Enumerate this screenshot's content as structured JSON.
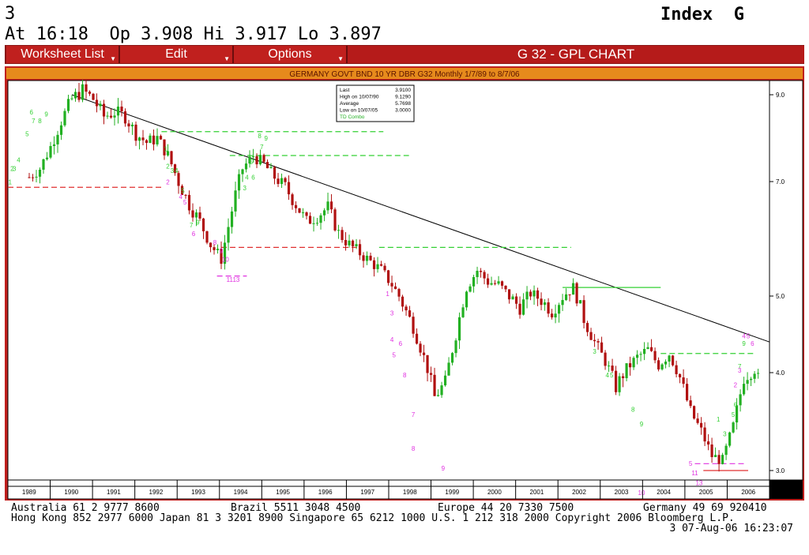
{
  "header": {
    "page_number": "3",
    "quote_line": "At 16:18  Op 3.908 Hi 3.917 Lo 3.897",
    "index_label": "Index  G"
  },
  "menu": {
    "items": [
      {
        "label": "Worksheet List"
      },
      {
        "label": "Edit"
      },
      {
        "label": "Options"
      }
    ],
    "screen_title": "G 32 - GPL CHART"
  },
  "chart_data": {
    "type": "candlestick",
    "title": "GERMANY GOVT BND 10 YR DBR G32 Monthly 1/7/89 to 8/7/06",
    "x_range": [
      1989.0,
      2006.85
    ],
    "y_range": [
      2.85,
      9.3
    ],
    "y_ticks": [
      {
        "value": 9.0,
        "label": "9.0"
      },
      {
        "value": 7.0,
        "label": "7.0"
      },
      {
        "value": 5.0,
        "label": "5.0"
      },
      {
        "value": 4.0,
        "label": "4.0"
      },
      {
        "value": 3.0,
        "label": "3.0"
      }
    ],
    "x_tick_labels": [
      "1989",
      "1990",
      "1991",
      "1992",
      "1993",
      "1994",
      "1995",
      "1996",
      "1997",
      "1998",
      "1999",
      "2000",
      "2001",
      "2002",
      "2003",
      "2004",
      "2005",
      "2006"
    ],
    "stats_box": [
      {
        "label": "Last",
        "value": "3.9100"
      },
      {
        "label": "High on  10/07/90",
        "value": "9.1290"
      },
      {
        "label": "Average",
        "value": "5.7698"
      },
      {
        "label": "Low on  10/07/05",
        "value": "3.0000"
      },
      {
        "label": "TD Combo",
        "value": ""
      }
    ],
    "colors": {
      "up": "#22b022",
      "down": "#b01010",
      "trend": "#000000",
      "green_marks": "#33d033",
      "magenta_marks": "#e030e0",
      "red_marks": "#e03030"
    },
    "trendline": [
      [
        1990.5,
        9.0
      ],
      [
        2006.85,
        4.4
      ]
    ],
    "resistance_lines": [
      {
        "x": [
          1992.6,
          1997.8
        ],
        "y": 8.15,
        "color": "green",
        "dashed": true
      },
      {
        "x": [
          1994.2,
          1998.4
        ],
        "y": 7.6,
        "color": "green",
        "dashed": true
      },
      {
        "x": [
          1997.7,
          2002.2
        ],
        "y": 5.85,
        "color": "green",
        "dashed": true
      },
      {
        "x": [
          2002.0,
          2004.3
        ],
        "y": 5.15,
        "color": "green",
        "dashed": false
      },
      {
        "x": [
          2004.3,
          2006.5
        ],
        "y": 4.25,
        "color": "green",
        "dashed": true
      }
    ],
    "support_lines": [
      {
        "x": [
          1989.0,
          1992.6
        ],
        "y": 6.9,
        "color": "red",
        "dashed": true
      },
      {
        "x": [
          1994.0,
          1997.2
        ],
        "y": 5.85,
        "color": "red",
        "dashed": true
      },
      {
        "x": [
          1993.9,
          1994.6
        ],
        "y": 5.35,
        "color": "magenta",
        "dashed": true
      },
      {
        "x": [
          2005.1,
          2006.3
        ],
        "y": 3.07,
        "color": "magenta",
        "dashed": true
      },
      {
        "x": [
          2005.3,
          2006.35
        ],
        "y": 3.0,
        "color": "red",
        "dashed": false
      }
    ],
    "monthly_close": [
      [
        1989.0,
        6.9
      ],
      [
        1989.25,
        7.0
      ],
      [
        1989.5,
        7.1
      ],
      [
        1989.75,
        7.3
      ],
      [
        1990.0,
        7.8
      ],
      [
        1990.25,
        8.4
      ],
      [
        1990.5,
        8.9
      ],
      [
        1990.75,
        9.1
      ],
      [
        1991.0,
        8.9
      ],
      [
        1991.25,
        8.5
      ],
      [
        1991.5,
        8.6
      ],
      [
        1991.75,
        8.5
      ],
      [
        1992.0,
        8.1
      ],
      [
        1992.25,
        7.9
      ],
      [
        1992.5,
        8.0
      ],
      [
        1992.75,
        7.6
      ],
      [
        1993.0,
        7.0
      ],
      [
        1993.25,
        6.6
      ],
      [
        1993.5,
        6.3
      ],
      [
        1993.75,
        5.9
      ],
      [
        1994.0,
        5.65
      ],
      [
        1994.25,
        6.5
      ],
      [
        1994.5,
        7.3
      ],
      [
        1994.75,
        7.6
      ],
      [
        1995.0,
        7.4
      ],
      [
        1995.25,
        7.1
      ],
      [
        1995.5,
        6.9
      ],
      [
        1995.75,
        6.6
      ],
      [
        1996.0,
        6.3
      ],
      [
        1996.25,
        6.4
      ],
      [
        1996.5,
        6.55
      ],
      [
        1996.75,
        6.1
      ],
      [
        1997.0,
        5.9
      ],
      [
        1997.25,
        5.75
      ],
      [
        1997.5,
        5.6
      ],
      [
        1997.75,
        5.45
      ],
      [
        1998.0,
        5.2
      ],
      [
        1998.25,
        4.9
      ],
      [
        1998.5,
        4.6
      ],
      [
        1998.75,
        4.2
      ],
      [
        1999.0,
        3.75
      ],
      [
        1999.25,
        3.9
      ],
      [
        1999.5,
        4.5
      ],
      [
        1999.75,
        5.15
      ],
      [
        2000.0,
        5.45
      ],
      [
        2000.25,
        5.25
      ],
      [
        2000.5,
        5.2
      ],
      [
        2000.75,
        5.0
      ],
      [
        2001.0,
        4.85
      ],
      [
        2001.25,
        5.05
      ],
      [
        2001.5,
        4.95
      ],
      [
        2001.75,
        4.8
      ],
      [
        2002.0,
        5.0
      ],
      [
        2002.25,
        5.15
      ],
      [
        2002.5,
        4.7
      ],
      [
        2002.75,
        4.4
      ],
      [
        2003.0,
        4.15
      ],
      [
        2003.25,
        3.85
      ],
      [
        2003.5,
        4.05
      ],
      [
        2003.75,
        4.2
      ],
      [
        2004.0,
        4.3
      ],
      [
        2004.25,
        4.1
      ],
      [
        2004.5,
        4.25
      ],
      [
        2004.75,
        3.95
      ],
      [
        2005.0,
        3.6
      ],
      [
        2005.25,
        3.4
      ],
      [
        2005.5,
        3.15
      ],
      [
        2005.75,
        3.1
      ],
      [
        2006.0,
        3.45
      ],
      [
        2006.25,
        3.95
      ],
      [
        2006.5,
        4.05
      ],
      [
        2006.6,
        3.91
      ]
    ],
    "td_marks": [
      {
        "x": 1989.05,
        "y": 6.95,
        "t": "1",
        "c": "green"
      },
      {
        "x": 1989.1,
        "y": 7.25,
        "t": "2",
        "c": "green"
      },
      {
        "x": 1989.15,
        "y": 7.25,
        "t": "3",
        "c": "green"
      },
      {
        "x": 1989.25,
        "y": 7.45,
        "t": "4",
        "c": "green"
      },
      {
        "x": 1989.45,
        "y": 8.05,
        "t": "5",
        "c": "green"
      },
      {
        "x": 1989.55,
        "y": 8.55,
        "t": "6",
        "c": "green"
      },
      {
        "x": 1989.6,
        "y": 8.35,
        "t": "7",
        "c": "green"
      },
      {
        "x": 1989.75,
        "y": 8.35,
        "t": "8",
        "c": "green"
      },
      {
        "x": 1989.9,
        "y": 8.5,
        "t": "9",
        "c": "green"
      },
      {
        "x": 1992.7,
        "y": 7.7,
        "t": "1",
        "c": "green"
      },
      {
        "x": 1992.75,
        "y": 7.3,
        "t": "2",
        "c": "green"
      },
      {
        "x": 1992.85,
        "y": 7.2,
        "t": "3",
        "c": "green"
      },
      {
        "x": 1992.95,
        "y": 7.2,
        "t": "4",
        "c": "green"
      },
      {
        "x": 1993.1,
        "y": 6.8,
        "t": "5",
        "c": "green"
      },
      {
        "x": 1993.3,
        "y": 6.2,
        "t": "7",
        "c": "green"
      },
      {
        "x": 1993.45,
        "y": 6.25,
        "t": "9",
        "c": "green"
      },
      {
        "x": 1992.75,
        "y": 6.95,
        "t": "2",
        "c": "magenta"
      },
      {
        "x": 1993.05,
        "y": 6.7,
        "t": "4",
        "c": "magenta"
      },
      {
        "x": 1993.15,
        "y": 6.6,
        "t": "5",
        "c": "magenta"
      },
      {
        "x": 1993.35,
        "y": 6.05,
        "t": "6",
        "c": "magenta"
      },
      {
        "x": 1993.85,
        "y": 5.9,
        "t": "8",
        "c": "magenta"
      },
      {
        "x": 1994.0,
        "y": 5.75,
        "t": "9",
        "c": "magenta"
      },
      {
        "x": 1994.1,
        "y": 5.6,
        "t": "10",
        "c": "magenta"
      },
      {
        "x": 1994.2,
        "y": 5.25,
        "t": "11",
        "c": "magenta"
      },
      {
        "x": 1994.35,
        "y": 5.25,
        "t": "13",
        "c": "magenta"
      },
      {
        "x": 1994.55,
        "y": 6.85,
        "t": "3",
        "c": "green"
      },
      {
        "x": 1994.6,
        "y": 7.05,
        "t": "4",
        "c": "green"
      },
      {
        "x": 1994.7,
        "y": 7.4,
        "t": "5",
        "c": "green"
      },
      {
        "x": 1994.75,
        "y": 7.05,
        "t": "6",
        "c": "green"
      },
      {
        "x": 1994.95,
        "y": 7.75,
        "t": "7",
        "c": "green"
      },
      {
        "x": 1994.9,
        "y": 8.0,
        "t": "8",
        "c": "green"
      },
      {
        "x": 1995.05,
        "y": 7.95,
        "t": "9",
        "c": "green"
      },
      {
        "x": 1997.9,
        "y": 5.0,
        "t": "1",
        "c": "magenta"
      },
      {
        "x": 1998.0,
        "y": 4.75,
        "t": "3",
        "c": "magenta"
      },
      {
        "x": 1998.0,
        "y": 4.4,
        "t": "4",
        "c": "magenta"
      },
      {
        "x": 1998.05,
        "y": 4.2,
        "t": "5",
        "c": "magenta"
      },
      {
        "x": 1998.2,
        "y": 4.35,
        "t": "6",
        "c": "magenta"
      },
      {
        "x": 1998.3,
        "y": 3.95,
        "t": "8",
        "c": "magenta"
      },
      {
        "x": 1998.5,
        "y": 3.55,
        "t": "7",
        "c": "magenta"
      },
      {
        "x": 1998.5,
        "y": 3.2,
        "t": "8",
        "c": "magenta"
      },
      {
        "x": 1999.2,
        "y": 3.0,
        "t": "9",
        "c": "magenta"
      },
      {
        "x": 2002.75,
        "y": 4.25,
        "t": "3",
        "c": "green"
      },
      {
        "x": 2003.05,
        "y": 3.95,
        "t": "4",
        "c": "green"
      },
      {
        "x": 2003.15,
        "y": 3.95,
        "t": "5",
        "c": "green"
      },
      {
        "x": 2003.65,
        "y": 3.6,
        "t": "8",
        "c": "green"
      },
      {
        "x": 2003.85,
        "y": 3.45,
        "t": "9",
        "c": "green"
      },
      {
        "x": 2003.85,
        "y": 2.75,
        "t": "10",
        "c": "magenta"
      },
      {
        "x": 2005.0,
        "y": 3.05,
        "t": "5",
        "c": "magenta"
      },
      {
        "x": 2005.1,
        "y": 2.95,
        "t": "11",
        "c": "magenta"
      },
      {
        "x": 2005.2,
        "y": 2.85,
        "t": "13",
        "c": "magenta"
      },
      {
        "x": 2005.65,
        "y": 3.5,
        "t": "1",
        "c": "green"
      },
      {
        "x": 2005.8,
        "y": 3.35,
        "t": "3",
        "c": "green"
      },
      {
        "x": 2006.0,
        "y": 3.55,
        "t": "5",
        "c": "green"
      },
      {
        "x": 2006.05,
        "y": 3.65,
        "t": "6",
        "c": "green"
      },
      {
        "x": 2006.15,
        "y": 4.05,
        "t": "7",
        "c": "green"
      },
      {
        "x": 2006.25,
        "y": 4.35,
        "t": "9",
        "c": "green"
      },
      {
        "x": 2006.05,
        "y": 3.85,
        "t": "2",
        "c": "magenta"
      },
      {
        "x": 2006.15,
        "y": 4.0,
        "t": "3",
        "c": "magenta"
      },
      {
        "x": 2006.25,
        "y": 4.45,
        "t": "4",
        "c": "magenta"
      },
      {
        "x": 2006.35,
        "y": 4.45,
        "t": "5",
        "c": "magenta"
      },
      {
        "x": 2006.45,
        "y": 4.35,
        "t": "6",
        "c": "magenta"
      }
    ]
  },
  "footer": {
    "line1": [
      {
        "text": "Australia 61 2 9777 8600"
      },
      {
        "text": "Brazil 5511 3048 4500"
      },
      {
        "text": "Europe 44 20 7330 7500"
      },
      {
        "text": "Germany 49 69 920410"
      }
    ],
    "line2": "Hong Kong 852 2977 6000 Japan 81 3 3201 8900 Singapore 65 6212 1000 U.S. 1 212 318 2000 Copyright 2006 Bloomberg L.P.",
    "line3": "3 07-Aug-06 16:23:07"
  }
}
